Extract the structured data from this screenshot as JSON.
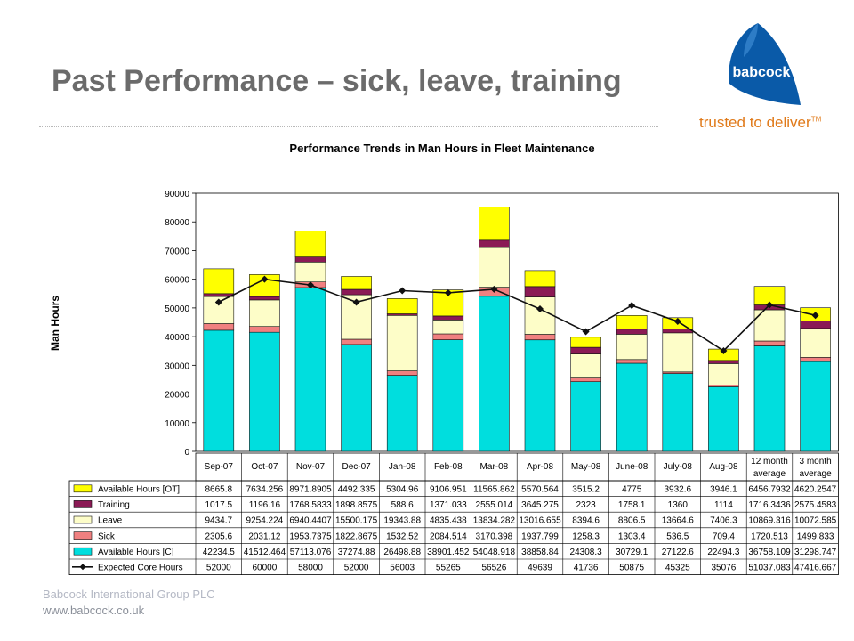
{
  "slide": {
    "title": "Past Performance – sick, leave, training",
    "tagline": "trusted to deliver",
    "tagline_mark": "TM",
    "logo_text": "babcock",
    "footer_company": "Babcock International Group PLC",
    "footer_url": "www.babcock.co.uk"
  },
  "colors": {
    "title": "#6b6b6b",
    "logo_blue": "#0a5aa8",
    "tagline": "#e07a1a",
    "available_c": "#00dede",
    "sick": "#f08080",
    "leave": "#fdfdc8",
    "training": "#8b1a55",
    "available_ot": "#ffff00",
    "expected": "#111111"
  },
  "chart_data": {
    "type": "bar",
    "stacked": true,
    "title": "Performance Trends in Man Hours in Fleet Maintenance",
    "xlabel": "",
    "ylabel": "Man Hours",
    "ylim": [
      0,
      90000
    ],
    "yticks": [
      0,
      10000,
      20000,
      30000,
      40000,
      50000,
      60000,
      70000,
      80000,
      90000
    ],
    "grid": false,
    "legend": "data-table",
    "categories": [
      "Sep-07",
      "Oct-07",
      "Nov-07",
      "Dec-07",
      "Jan-08",
      "Feb-08",
      "Mar-08",
      "Apr-08",
      "May-08",
      "June-08",
      "July-08",
      "Aug-08",
      "12 month average",
      "3 month average"
    ],
    "category_lines": [
      [
        "Sep-07"
      ],
      [
        "Oct-07"
      ],
      [
        "Nov-07"
      ],
      [
        "Dec-07"
      ],
      [
        "Jan-08"
      ],
      [
        "Feb-08"
      ],
      [
        "Mar-08"
      ],
      [
        "Apr-08"
      ],
      [
        "May-08"
      ],
      [
        "June-08"
      ],
      [
        "July-08"
      ],
      [
        "Aug-08"
      ],
      [
        "12 month",
        "average"
      ],
      [
        "3 month",
        "average"
      ]
    ],
    "series": [
      {
        "name": "Available Hours [OT]",
        "kind": "bar",
        "values": [
          8665.8,
          7634.256,
          8971.8905,
          4492.335,
          5304.96,
          9106.951,
          11565.862,
          5570.564,
          3515.2,
          4775,
          3932.6,
          3946.1,
          6456.7932,
          4620.2547
        ],
        "labels": [
          "8665.8",
          "7634.256",
          "8971.8905",
          "4492.335",
          "5304.96",
          "9106.951",
          "11565.862",
          "5570.564",
          "3515.2",
          "4775",
          "3932.6",
          "3946.1",
          "6456.7932",
          "4620.2547"
        ]
      },
      {
        "name": "Training",
        "kind": "bar",
        "values": [
          1017.5,
          1196.16,
          1768.5833,
          1898.8575,
          588.6,
          1371.033,
          2555.014,
          3645.275,
          2323,
          1758.1,
          1360,
          1114,
          1716.3436,
          2575.4583
        ],
        "labels": [
          "1017.5",
          "1196.16",
          "1768.5833",
          "1898.8575",
          "588.6",
          "1371.033",
          "2555.014",
          "3645.275",
          "2323",
          "1758.1",
          "1360",
          "1114",
          "1716.3436",
          "2575.4583"
        ]
      },
      {
        "name": "Leave",
        "kind": "bar",
        "values": [
          9434.7,
          9254.224,
          6940.4407,
          15500.175,
          19343.88,
          4835.438,
          13834.282,
          13016.655,
          8394.6,
          8806.5,
          13664.6,
          7406.3,
          10869.316,
          10072.585
        ],
        "labels": [
          "9434.7",
          "9254.224",
          "6940.4407",
          "15500.175",
          "19343.88",
          "4835.438",
          "13834.282",
          "13016.655",
          "8394.6",
          "8806.5",
          "13664.6",
          "7406.3",
          "10869.316",
          "10072.585"
        ]
      },
      {
        "name": "Sick",
        "kind": "bar",
        "values": [
          2305.6,
          2031.12,
          1953.7375,
          1822.8675,
          1532.52,
          2084.514,
          3170.398,
          1937.799,
          1258.3,
          1303.4,
          536.5,
          709.4,
          1720.513,
          1499.833
        ],
        "labels": [
          "2305.6",
          "2031.12",
          "1953.7375",
          "1822.8675",
          "1532.52",
          "2084.514",
          "3170.398",
          "1937.799",
          "1258.3",
          "1303.4",
          "536.5",
          "709.4",
          "1720.513",
          "1499.833"
        ]
      },
      {
        "name": "Available Hours [C]",
        "kind": "bar",
        "values": [
          42234.5,
          41512.464,
          57113.076,
          37274.88,
          26498.88,
          38901.452,
          54048.918,
          38858.84,
          24308.3,
          30729.1,
          27122.6,
          22494.3,
          36758.109,
          31298.747
        ],
        "labels": [
          "42234.5",
          "41512.464",
          "57113.076",
          "37274.88",
          "26498.88",
          "38901.452",
          "54048.918",
          "38858.84",
          "24308.3",
          "30729.1",
          "27122.6",
          "22494.3",
          "36758.109",
          "31298.747"
        ]
      },
      {
        "name": "Expected Core Hours",
        "kind": "line",
        "values": [
          52000,
          60000,
          58000,
          52000,
          56003,
          55265,
          56526,
          49639,
          41736,
          50875,
          45325,
          35076,
          51037.083,
          47416.667
        ],
        "labels": [
          "52000",
          "60000",
          "58000",
          "52000",
          "56003",
          "55265",
          "56526",
          "49639",
          "41736",
          "50875",
          "45325",
          "35076",
          "51037.083",
          "47416.667"
        ]
      }
    ]
  }
}
